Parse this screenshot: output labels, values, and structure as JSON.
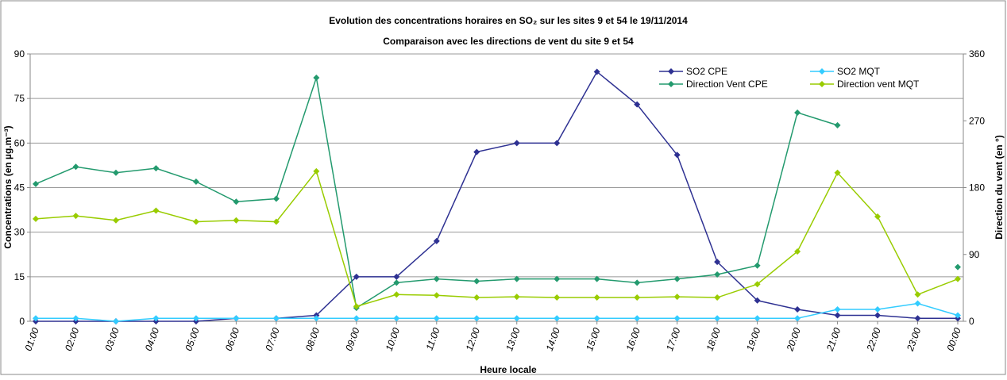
{
  "chart_data": {
    "type": "line",
    "title": "Evolution des concentrations horaires en SO₂ sur les sites 9 et 54 le 19/11/2014",
    "subtitle": "Comparaison avec les directions de vent du site 9 et 54",
    "x_label": "Heure locale",
    "y_label": "Concentrations (en µg.m⁻³)",
    "y2_label": "Direction du vent (en °)",
    "categories": [
      "01:00",
      "02:00",
      "03:00",
      "04:00",
      "05:00",
      "06:00",
      "07:00",
      "08:00",
      "09:00",
      "10:00",
      "11:00",
      "12:00",
      "13:00",
      "14:00",
      "15:00",
      "16:00",
      "17:00",
      "18:00",
      "19:00",
      "20:00",
      "21:00",
      "22:00",
      "23:00",
      "00:00"
    ],
    "ylim": [
      0,
      90
    ],
    "yticks": [
      0,
      15,
      30,
      45,
      60,
      75,
      90
    ],
    "y2lim": [
      0,
      360
    ],
    "y2ticks": [
      0,
      90,
      180,
      270,
      360
    ],
    "grid": true,
    "legend": "top-right",
    "series": [
      {
        "name": "SO2 CPE",
        "color": "#2e3192",
        "values": [
          0,
          0,
          0,
          0,
          0,
          1,
          1,
          2,
          15,
          15,
          27,
          57,
          60,
          60,
          84,
          73,
          56,
          20,
          7,
          4,
          2,
          2,
          1,
          1
        ]
      },
      {
        "name": "SO2 MQT",
        "color": "#33ccff",
        "values": [
          1,
          1,
          0,
          1,
          1,
          1,
          1,
          1,
          1,
          1,
          1,
          1,
          1,
          1,
          1,
          1,
          1,
          1,
          1,
          1,
          4,
          4,
          6,
          2
        ]
      },
      {
        "name": "Direction Vent CPE",
        "color": "#239a6e",
        "axis": "y2",
        "values": [
          185,
          208,
          200,
          206,
          188,
          161,
          165,
          328,
          18,
          52,
          57,
          54,
          57,
          57,
          57,
          52,
          57,
          63,
          75,
          281,
          264,
          null,
          null,
          73
        ]
      },
      {
        "name": "Direction vent MQT",
        "color": "#99cc00",
        "axis": "y2",
        "values": [
          138,
          142,
          136,
          149,
          134,
          136,
          134,
          202,
          20,
          36,
          35,
          32,
          33,
          32,
          32,
          32,
          33,
          32,
          50,
          94,
          200,
          141,
          36,
          57
        ]
      }
    ]
  }
}
